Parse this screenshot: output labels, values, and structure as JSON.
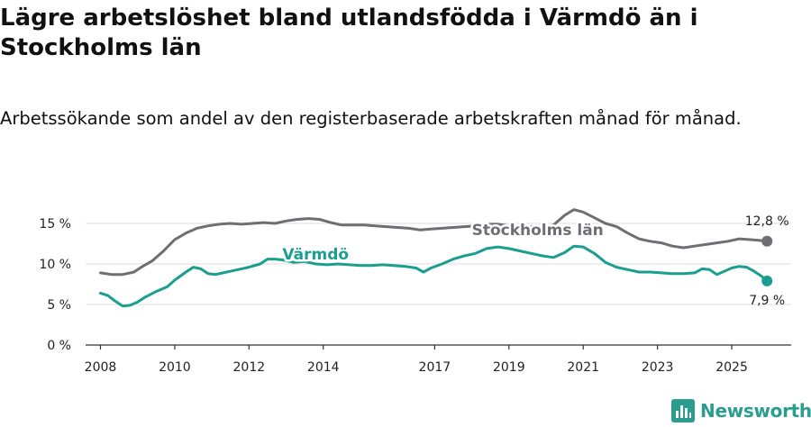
{
  "header": {
    "title": "Lägre arbetslöshet bland utlandsfödda i Värmdö än i Stockholms län",
    "subtitle": "Arbetssökande som andel av den registerbaserade arbetskraften månad för månad."
  },
  "colors": {
    "stockholm": "#6e6e73",
    "varmdo": "#1a9e8f",
    "grid": "#dddddd",
    "axis": "#333333",
    "brand": "#2a9d8f"
  },
  "brand": {
    "name": "Newsworthy",
    "icon": "newsworthy-logo-icon"
  },
  "chart_data": {
    "type": "line",
    "title": "Lägre arbetslöshet bland utlandsfödda i Värmdö än i Stockholms län",
    "xlabel": "",
    "ylabel": "",
    "x_ticks": [
      2008,
      2010,
      2012,
      2014,
      2017,
      2019,
      2021,
      2023,
      2025
    ],
    "x_tick_labels": [
      "2008",
      "2010",
      "2012",
      "2014",
      "2017",
      "2019",
      "2021",
      "2023",
      "2025"
    ],
    "y_ticks": [
      0,
      5,
      10,
      15
    ],
    "y_tick_labels": [
      "0 %",
      "5 %",
      "10 %",
      "15 %"
    ],
    "xlim": [
      2007.6,
      2026.6
    ],
    "ylim": [
      0,
      17
    ],
    "series": [
      {
        "name": "Stockholms län",
        "color_key": "stockholm",
        "end_label": "12,8 %",
        "points": [
          [
            2008.0,
            8.9
          ],
          [
            2008.3,
            8.7
          ],
          [
            2008.6,
            8.7
          ],
          [
            2008.9,
            9.0
          ],
          [
            2009.1,
            9.6
          ],
          [
            2009.4,
            10.4
          ],
          [
            2009.7,
            11.6
          ],
          [
            2010.0,
            13.0
          ],
          [
            2010.3,
            13.8
          ],
          [
            2010.6,
            14.4
          ],
          [
            2010.9,
            14.7
          ],
          [
            2011.2,
            14.9
          ],
          [
            2011.5,
            15.0
          ],
          [
            2011.8,
            14.9
          ],
          [
            2012.1,
            15.0
          ],
          [
            2012.4,
            15.1
          ],
          [
            2012.7,
            15.0
          ],
          [
            2013.0,
            15.3
          ],
          [
            2013.3,
            15.5
          ],
          [
            2013.6,
            15.6
          ],
          [
            2013.9,
            15.5
          ],
          [
            2014.2,
            15.1
          ],
          [
            2014.5,
            14.8
          ],
          [
            2014.8,
            14.8
          ],
          [
            2015.1,
            14.8
          ],
          [
            2015.4,
            14.7
          ],
          [
            2015.7,
            14.6
          ],
          [
            2016.0,
            14.5
          ],
          [
            2016.3,
            14.4
          ],
          [
            2016.6,
            14.2
          ],
          [
            2016.9,
            14.3
          ],
          [
            2017.2,
            14.4
          ],
          [
            2017.5,
            14.5
          ],
          [
            2017.8,
            14.6
          ],
          [
            2018.1,
            14.7
          ],
          [
            2018.4,
            14.9
          ],
          [
            2018.7,
            14.9
          ],
          [
            2019.0,
            14.7
          ],
          [
            2019.3,
            14.7
          ],
          [
            2019.6,
            14.6
          ],
          [
            2019.9,
            14.4
          ],
          [
            2020.2,
            14.8
          ],
          [
            2020.5,
            16.0
          ],
          [
            2020.75,
            16.7
          ],
          [
            2021.0,
            16.4
          ],
          [
            2021.3,
            15.7
          ],
          [
            2021.6,
            15.0
          ],
          [
            2021.9,
            14.6
          ],
          [
            2022.2,
            13.8
          ],
          [
            2022.5,
            13.1
          ],
          [
            2022.8,
            12.8
          ],
          [
            2023.1,
            12.6
          ],
          [
            2023.4,
            12.2
          ],
          [
            2023.7,
            12.0
          ],
          [
            2024.0,
            12.2
          ],
          [
            2024.3,
            12.4
          ],
          [
            2024.6,
            12.6
          ],
          [
            2024.9,
            12.8
          ],
          [
            2025.2,
            13.1
          ],
          [
            2025.5,
            13.0
          ],
          [
            2025.75,
            12.9
          ],
          [
            2025.95,
            12.8
          ]
        ]
      },
      {
        "name": "Värmdö",
        "color_key": "varmdo",
        "end_label": "7,9 %",
        "points": [
          [
            2008.0,
            6.4
          ],
          [
            2008.2,
            6.1
          ],
          [
            2008.4,
            5.4
          ],
          [
            2008.6,
            4.8
          ],
          [
            2008.8,
            4.9
          ],
          [
            2009.0,
            5.3
          ],
          [
            2009.2,
            5.9
          ],
          [
            2009.5,
            6.6
          ],
          [
            2009.8,
            7.2
          ],
          [
            2010.0,
            8.0
          ],
          [
            2010.3,
            9.0
          ],
          [
            2010.5,
            9.6
          ],
          [
            2010.7,
            9.4
          ],
          [
            2010.9,
            8.8
          ],
          [
            2011.1,
            8.7
          ],
          [
            2011.4,
            9.0
          ],
          [
            2011.7,
            9.3
          ],
          [
            2012.0,
            9.6
          ],
          [
            2012.3,
            10.0
          ],
          [
            2012.5,
            10.6
          ],
          [
            2012.7,
            10.6
          ],
          [
            2012.9,
            10.5
          ],
          [
            2013.2,
            10.2
          ],
          [
            2013.5,
            10.3
          ],
          [
            2013.8,
            10.0
          ],
          [
            2014.1,
            9.9
          ],
          [
            2014.4,
            10.0
          ],
          [
            2014.7,
            9.9
          ],
          [
            2015.0,
            9.8
          ],
          [
            2015.3,
            9.8
          ],
          [
            2015.6,
            9.9
          ],
          [
            2015.9,
            9.8
          ],
          [
            2016.2,
            9.7
          ],
          [
            2016.5,
            9.5
          ],
          [
            2016.7,
            9.0
          ],
          [
            2016.9,
            9.5
          ],
          [
            2017.2,
            10.0
          ],
          [
            2017.5,
            10.6
          ],
          [
            2017.8,
            11.0
          ],
          [
            2018.1,
            11.3
          ],
          [
            2018.4,
            11.9
          ],
          [
            2018.7,
            12.1
          ],
          [
            2019.0,
            11.9
          ],
          [
            2019.3,
            11.6
          ],
          [
            2019.6,
            11.3
          ],
          [
            2019.9,
            11.0
          ],
          [
            2020.2,
            10.8
          ],
          [
            2020.5,
            11.4
          ],
          [
            2020.75,
            12.2
          ],
          [
            2021.0,
            12.1
          ],
          [
            2021.3,
            11.3
          ],
          [
            2021.6,
            10.2
          ],
          [
            2021.9,
            9.6
          ],
          [
            2022.2,
            9.3
          ],
          [
            2022.5,
            9.0
          ],
          [
            2022.8,
            9.0
          ],
          [
            2023.1,
            8.9
          ],
          [
            2023.4,
            8.8
          ],
          [
            2023.7,
            8.8
          ],
          [
            2024.0,
            8.9
          ],
          [
            2024.2,
            9.4
          ],
          [
            2024.4,
            9.3
          ],
          [
            2024.6,
            8.7
          ],
          [
            2024.8,
            9.1
          ],
          [
            2025.0,
            9.5
          ],
          [
            2025.2,
            9.7
          ],
          [
            2025.4,
            9.6
          ],
          [
            2025.6,
            9.1
          ],
          [
            2025.8,
            8.5
          ],
          [
            2025.95,
            7.9
          ]
        ]
      }
    ]
  }
}
